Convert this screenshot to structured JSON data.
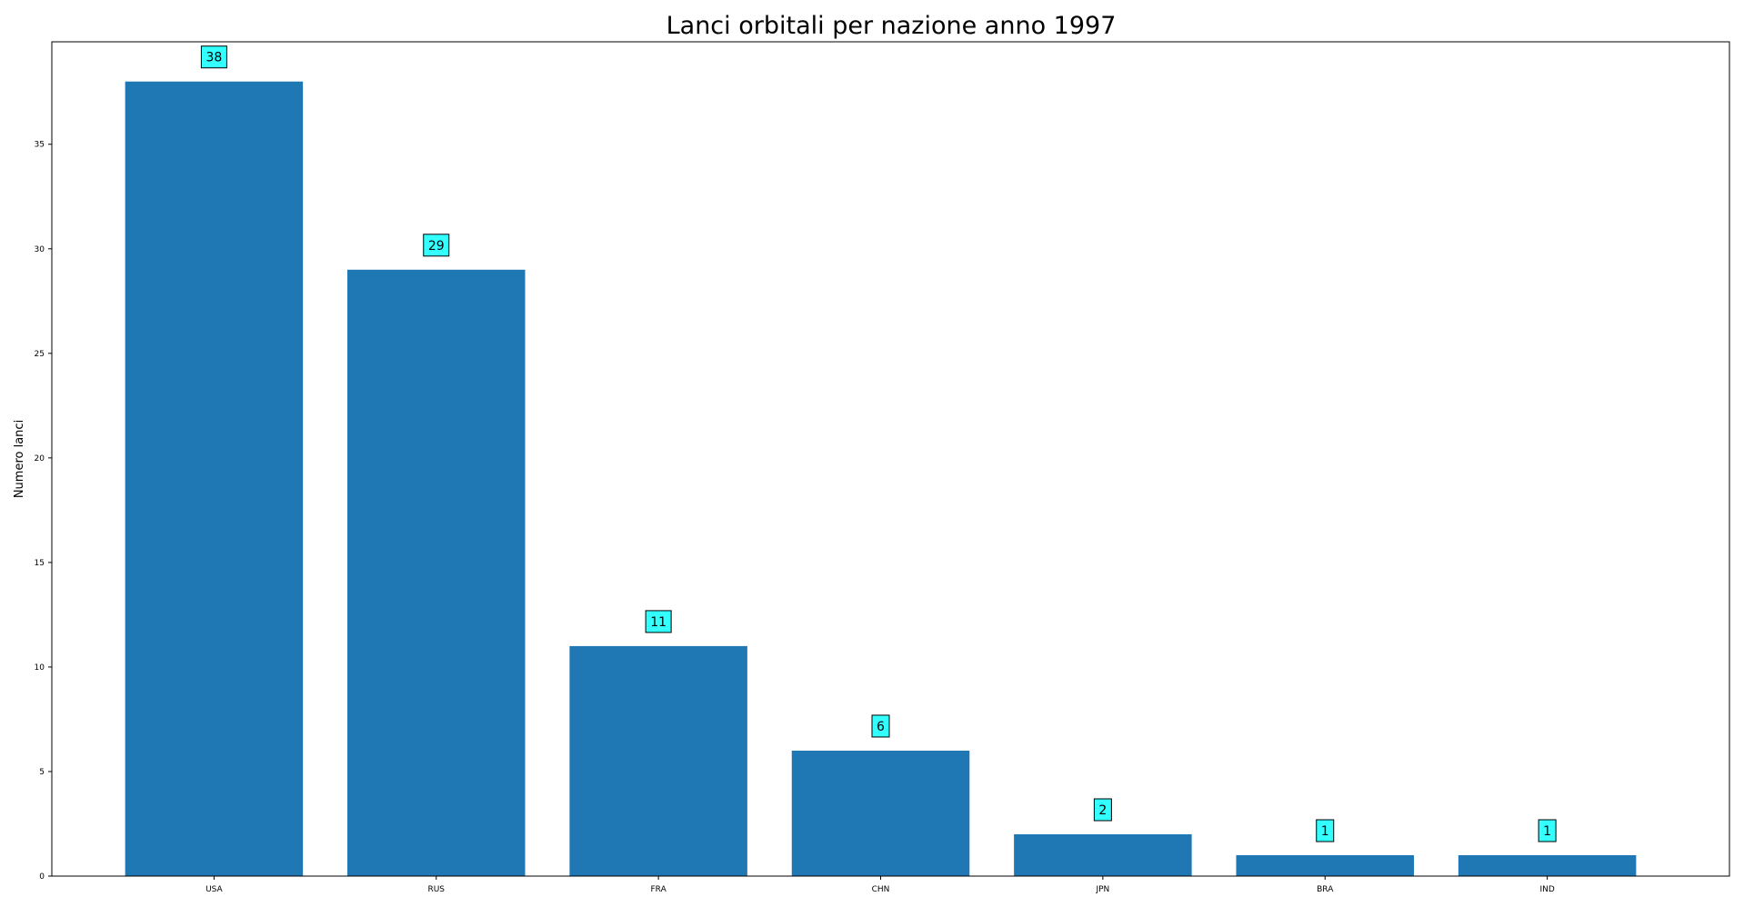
{
  "chart_data": {
    "type": "bar",
    "title": "Lanci orbitali per nazione anno 1997",
    "xlabel": "",
    "ylabel": "Numero lanci",
    "categories": [
      "USA",
      "RUS",
      "FRA",
      "CHN",
      "JPN",
      "BRA",
      "IND"
    ],
    "values": [
      38,
      29,
      11,
      6,
      2,
      1,
      1
    ],
    "data_labels": [
      "38",
      "29",
      "11",
      "6",
      "2",
      "1",
      "1"
    ],
    "ylim": [
      0,
      39.9
    ],
    "yticks": [
      0,
      5,
      10,
      15,
      20,
      25,
      30,
      35
    ],
    "ytick_labels": [
      "0",
      "5",
      "10",
      "15",
      "20",
      "25",
      "30",
      "35"
    ],
    "grid": false,
    "bar_color": "#1f77b4",
    "label_box_color": "#33ffff"
  }
}
